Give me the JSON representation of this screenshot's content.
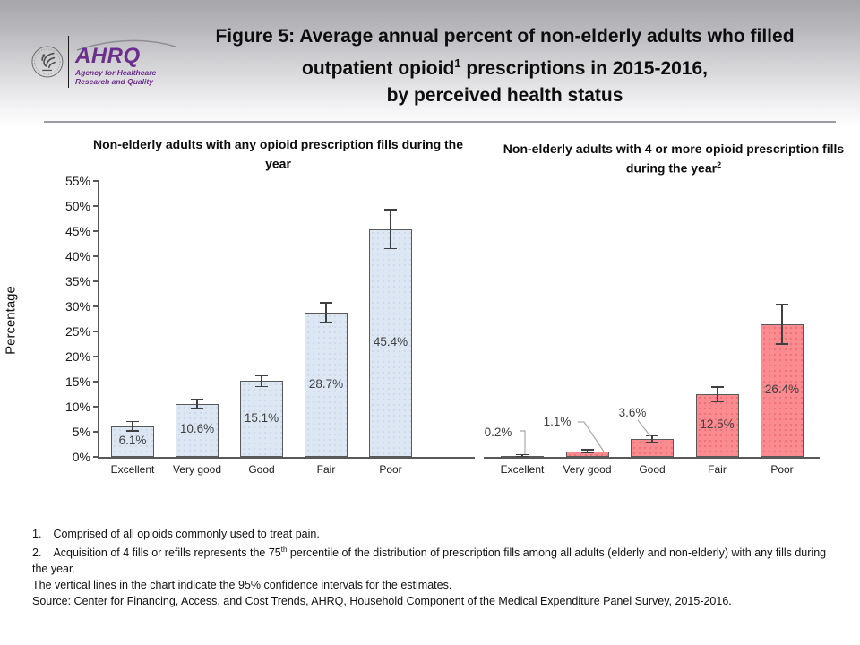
{
  "header": {
    "logo": {
      "ahrq_text": "AHRQ",
      "tagline_line1": "Agency for Healthcare",
      "tagline_line2": "Research and Quality"
    },
    "title_line1": "Figure 5: Average annual percent of non-elderly adults who filled",
    "title_line2_pre": "outpatient opioid",
    "title_line2_sup": "1",
    "title_line2_post": " prescriptions in 2015-2016,",
    "title_line3": "by perceived health status"
  },
  "chart_data": {
    "type": "bar",
    "categories": [
      "Excellent",
      "Very good",
      "Good",
      "Fair",
      "Poor"
    ],
    "ylabel": "Percentage",
    "ylim": [
      0,
      55
    ],
    "ytick_step": 5,
    "ytick_suffix": "%",
    "grid": false,
    "note": "Vertical lines on bars are 95% confidence intervals",
    "panels": [
      {
        "title": "Non-elderly adults with any opioid prescription fills during the year",
        "title_sup": "",
        "fill": "#dde7f3",
        "dot_color": "#c6d5ea",
        "border": "#595959",
        "values": [
          6.1,
          10.6,
          15.1,
          28.7,
          45.4
        ],
        "labels": [
          "6.1%",
          "10.6%",
          "15.1%",
          "28.7%",
          "45.4%"
        ],
        "ci_low": [
          5.2,
          9.7,
          14.0,
          26.8,
          41.5
        ],
        "ci_high": [
          7.0,
          11.5,
          16.2,
          30.7,
          49.3
        ],
        "label_outside": []
      },
      {
        "title": "Non-elderly adults with 4 or more opioid prescription fills during the year",
        "title_sup": "2",
        "fill": "#fa8b90",
        "dot_color": "#ec686d",
        "border": "#595959",
        "values": [
          0.2,
          1.1,
          3.6,
          12.5,
          26.4
        ],
        "labels": [
          "0.2%",
          "1.1%",
          "3.6%",
          "12.5%",
          "26.4%"
        ],
        "ci_low": [
          0.1,
          0.8,
          3.0,
          11.0,
          22.5
        ],
        "ci_high": [
          0.4,
          1.4,
          4.2,
          13.9,
          30.4
        ],
        "label_outside": [
          0,
          1,
          2
        ]
      }
    ]
  },
  "footnotes": {
    "fn1_num": "1.",
    "fn1_text": "Comprised of all opioids commonly used to treat pain.",
    "fn2_num": "2.",
    "fn2_pre": "Acquisition of 4 fills or refills represents the 75",
    "fn2_sup": "th",
    "fn2_post": " percentile of the distribution of prescription fills among all adults (elderly and non-elderly) with any fills during the year.",
    "ci_note": "The vertical lines in the chart indicate the 95% confidence intervals for the estimates.",
    "source": "Source: Center for Financing, Access, and Cost Trends, AHRQ, Household Component of the Medical Expenditure Panel Survey, 2015-2016."
  }
}
